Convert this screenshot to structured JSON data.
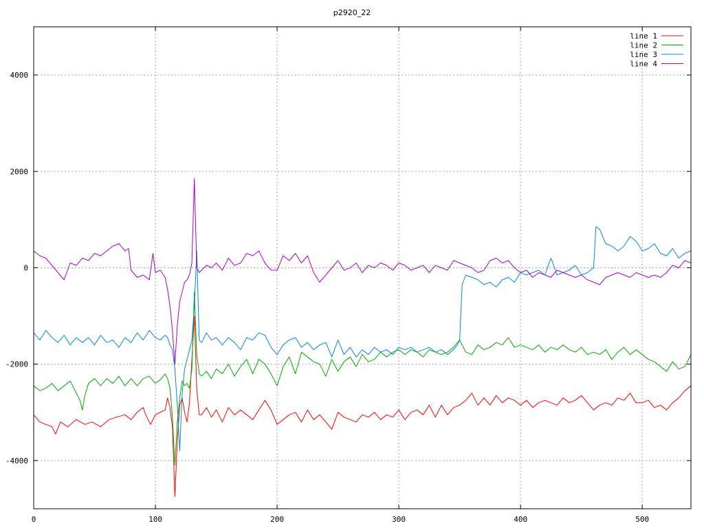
{
  "chart_data": {
    "type": "line",
    "title": "p2920_22",
    "xlabel": "",
    "ylabel": "",
    "xlim": [
      0,
      540
    ],
    "ylim": [
      -5000,
      5000
    ],
    "xticks": [
      0,
      100,
      200,
      300,
      400,
      500
    ],
    "yticks": [
      -4000,
      -2000,
      0,
      2000,
      4000
    ],
    "ytick_labels": [
      "-4000",
      "-2000",
      "0",
      "2000",
      "4000"
    ],
    "grid": true,
    "legend_position": "top-right",
    "series": [
      {
        "name": "line 1",
        "color": "#ff0000",
        "x": [
          0,
          5,
          10,
          15,
          18,
          22,
          28,
          35,
          42,
          48,
          55,
          62,
          68,
          75,
          80,
          85,
          90,
          92,
          96,
          100,
          104,
          108,
          110,
          112,
          114,
          116,
          118,
          120,
          122,
          124,
          126,
          128,
          130,
          132,
          134,
          136,
          138,
          142,
          146,
          150,
          155,
          160,
          165,
          170,
          175,
          180,
          185,
          190,
          195,
          200,
          205,
          210,
          215,
          220,
          225,
          230,
          235,
          240,
          245,
          250,
          255,
          260,
          265,
          270,
          275,
          280,
          285,
          290,
          295,
          300,
          305,
          310,
          315,
          320,
          325,
          330,
          335,
          340,
          345,
          350,
          355,
          360,
          365,
          370,
          375,
          380,
          385,
          390,
          395,
          400,
          405,
          410,
          415,
          420,
          425,
          430,
          435,
          440,
          445,
          450,
          455,
          460,
          465,
          470,
          475,
          480,
          485,
          490,
          495,
          500,
          505,
          510,
          515,
          520,
          525,
          530,
          535,
          540
        ],
        "y": [
          -3050,
          -3200,
          -3250,
          -3300,
          -3450,
          -3200,
          -3300,
          -3150,
          -3250,
          -3200,
          -3300,
          -3150,
          -3100,
          -3050,
          -3150,
          -3000,
          -2900,
          -3050,
          -3250,
          -3050,
          -3000,
          -2950,
          -2700,
          -2900,
          -3300,
          -4750,
          -3600,
          -2850,
          -2700,
          -3000,
          -3200,
          -2800,
          -1900,
          -1000,
          -2500,
          -3050,
          -3050,
          -2900,
          -3100,
          -2950,
          -3200,
          -2900,
          -3050,
          -2950,
          -3050,
          -3150,
          -2950,
          -2750,
          -2950,
          -3250,
          -3150,
          -3050,
          -3000,
          -3200,
          -2950,
          -3150,
          -3050,
          -3200,
          -3350,
          -3000,
          -3100,
          -3150,
          -3200,
          -3050,
          -3100,
          -3000,
          -3150,
          -3050,
          -3100,
          -2950,
          -3150,
          -3000,
          -2950,
          -3050,
          -2850,
          -3100,
          -2850,
          -3050,
          -2900,
          -2850,
          -2750,
          -2600,
          -2850,
          -2700,
          -2850,
          -2650,
          -2800,
          -2700,
          -2750,
          -2850,
          -2750,
          -2900,
          -2800,
          -2750,
          -2800,
          -2850,
          -2700,
          -2800,
          -2750,
          -2650,
          -2800,
          -2950,
          -2850,
          -2800,
          -2850,
          -2700,
          -2750,
          -2600,
          -2800,
          -2800,
          -2750,
          -2900,
          -2850,
          -2950,
          -2800,
          -2700,
          -2550,
          -2450
        ]
      },
      {
        "name": "line 2",
        "color": "#00aa00",
        "x": [
          0,
          5,
          10,
          15,
          20,
          25,
          30,
          35,
          38,
          40,
          42,
          45,
          50,
          55,
          60,
          65,
          70,
          75,
          80,
          85,
          90,
          95,
          100,
          105,
          108,
          110,
          112,
          114,
          116,
          118,
          120,
          122,
          124,
          126,
          128,
          130,
          132,
          134,
          136,
          138,
          142,
          146,
          150,
          155,
          160,
          165,
          170,
          175,
          180,
          185,
          190,
          195,
          200,
          205,
          210,
          215,
          220,
          225,
          230,
          235,
          240,
          245,
          250,
          255,
          260,
          265,
          270,
          275,
          280,
          285,
          290,
          295,
          300,
          305,
          310,
          315,
          320,
          325,
          330,
          335,
          340,
          345,
          350,
          355,
          360,
          365,
          370,
          375,
          380,
          385,
          390,
          395,
          400,
          405,
          410,
          415,
          420,
          425,
          430,
          435,
          440,
          445,
          450,
          455,
          460,
          465,
          470,
          475,
          480,
          485,
          490,
          495,
          500,
          505,
          510,
          515,
          520,
          525,
          530,
          535,
          540
        ],
        "y": [
          -2450,
          -2550,
          -2500,
          -2400,
          -2550,
          -2450,
          -2350,
          -2600,
          -2750,
          -2950,
          -2650,
          -2400,
          -2300,
          -2450,
          -2300,
          -2400,
          -2250,
          -2450,
          -2300,
          -2450,
          -2300,
          -2250,
          -2400,
          -2300,
          -2200,
          -2300,
          -2500,
          -3100,
          -4100,
          -3200,
          -2700,
          -2350,
          -2450,
          -2400,
          -2500,
          -2100,
          -500,
          -1800,
          -2200,
          -2250,
          -2150,
          -2300,
          -2100,
          -2200,
          -2000,
          -2250,
          -2050,
          -1900,
          -2200,
          -1900,
          -2000,
          -2200,
          -2450,
          -2050,
          -1850,
          -2200,
          -1750,
          -1850,
          -1950,
          -2000,
          -2250,
          -1900,
          -2150,
          -1950,
          -1850,
          -2050,
          -1800,
          -1950,
          -1900,
          -1750,
          -1850,
          -1750,
          -1700,
          -1800,
          -1700,
          -1750,
          -1850,
          -1700,
          -1750,
          -1800,
          -1750,
          -1650,
          -1500,
          -1750,
          -1800,
          -1600,
          -1700,
          -1650,
          -1550,
          -1600,
          -1450,
          -1650,
          -1600,
          -1650,
          -1700,
          -1600,
          -1750,
          -1650,
          -1700,
          -1600,
          -1700,
          -1750,
          -1650,
          -1800,
          -1750,
          -1800,
          -1700,
          -1900,
          -1750,
          -1650,
          -1800,
          -1700,
          -1800,
          -1900,
          -1950,
          -2050,
          -2150,
          -1950,
          -2100,
          -2050,
          -1800
        ]
      },
      {
        "name": "line 3",
        "color": "#0088dd",
        "x": [
          0,
          5,
          10,
          15,
          20,
          25,
          30,
          35,
          40,
          45,
          50,
          55,
          60,
          65,
          70,
          75,
          80,
          85,
          90,
          95,
          100,
          104,
          108,
          110,
          112,
          114,
          116,
          118,
          120,
          122,
          124,
          126,
          128,
          130,
          132,
          134,
          136,
          138,
          142,
          146,
          150,
          155,
          160,
          165,
          170,
          175,
          180,
          185,
          190,
          195,
          200,
          205,
          210,
          215,
          220,
          225,
          230,
          235,
          240,
          245,
          250,
          255,
          260,
          265,
          270,
          275,
          280,
          285,
          290,
          295,
          300,
          305,
          310,
          315,
          320,
          325,
          330,
          335,
          340,
          345,
          348,
          350,
          352,
          355,
          360,
          365,
          370,
          375,
          380,
          385,
          390,
          395,
          400,
          405,
          410,
          415,
          420,
          425,
          428,
          430,
          435,
          440,
          445,
          450,
          455,
          460,
          462,
          465,
          470,
          475,
          480,
          485,
          490,
          495,
          500,
          505,
          510,
          515,
          520,
          525,
          530,
          535,
          540
        ],
        "y": [
          -1350,
          -1500,
          -1300,
          -1450,
          -1550,
          -1400,
          -1600,
          -1450,
          -1550,
          -1450,
          -1600,
          -1400,
          -1550,
          -1500,
          -1650,
          -1450,
          -1550,
          -1350,
          -1500,
          -1300,
          -1450,
          -1500,
          -1400,
          -1450,
          -1600,
          -1700,
          -2100,
          -2850,
          -3800,
          -2600,
          -2100,
          -1900,
          -1700,
          -1500,
          -800,
          350,
          -1500,
          -1550,
          -1350,
          -1500,
          -1450,
          -1600,
          -1450,
          -1550,
          -1700,
          -1450,
          -1500,
          -1350,
          -1400,
          -1650,
          -1800,
          -1600,
          -1500,
          -1450,
          -1650,
          -1550,
          -1700,
          -1600,
          -1550,
          -1850,
          -1500,
          -1800,
          -1650,
          -1850,
          -1700,
          -1800,
          -1650,
          -1750,
          -1700,
          -1800,
          -1650,
          -1700,
          -1650,
          -1750,
          -1700,
          -1650,
          -1750,
          -1700,
          -1800,
          -1700,
          -1600,
          -1500,
          -350,
          -150,
          -200,
          -250,
          -350,
          -300,
          -400,
          -250,
          -200,
          -300,
          -100,
          -150,
          -100,
          -50,
          -150,
          200,
          0,
          -150,
          -100,
          -50,
          50,
          -150,
          -100,
          0,
          850,
          800,
          500,
          450,
          350,
          450,
          650,
          550,
          350,
          400,
          500,
          300,
          250,
          400,
          200,
          300,
          350
        ]
      },
      {
        "name": "line 4",
        "color": "#aa00cc",
        "x": [
          0,
          5,
          10,
          15,
          20,
          25,
          30,
          35,
          40,
          45,
          50,
          55,
          60,
          65,
          70,
          75,
          78,
          80,
          85,
          90,
          95,
          98,
          100,
          104,
          108,
          110,
          112,
          114,
          116,
          118,
          120,
          122,
          124,
          126,
          128,
          130,
          132,
          134,
          136,
          138,
          142,
          146,
          150,
          155,
          160,
          165,
          170,
          175,
          180,
          185,
          190,
          195,
          200,
          205,
          210,
          215,
          220,
          225,
          230,
          235,
          240,
          245,
          250,
          255,
          260,
          265,
          270,
          275,
          280,
          285,
          290,
          295,
          300,
          305,
          310,
          315,
          320,
          325,
          330,
          335,
          340,
          345,
          350,
          355,
          360,
          365,
          370,
          375,
          380,
          385,
          390,
          395,
          400,
          405,
          410,
          415,
          420,
          425,
          430,
          435,
          440,
          445,
          450,
          455,
          460,
          465,
          470,
          475,
          480,
          485,
          490,
          495,
          500,
          505,
          510,
          515,
          520,
          525,
          530,
          535,
          540
        ],
        "y": [
          350,
          250,
          200,
          50,
          -100,
          -250,
          100,
          50,
          200,
          150,
          300,
          250,
          350,
          450,
          500,
          350,
          400,
          -50,
          -200,
          -150,
          -250,
          300,
          -100,
          -50,
          -200,
          -450,
          -800,
          -1300,
          -2000,
          -1200,
          -700,
          -500,
          -300,
          -250,
          -150,
          100,
          1850,
          0,
          -100,
          -50,
          50,
          0,
          100,
          -50,
          200,
          50,
          100,
          300,
          250,
          350,
          100,
          -50,
          -50,
          250,
          150,
          300,
          100,
          250,
          -100,
          -300,
          -150,
          0,
          150,
          -50,
          0,
          100,
          -100,
          50,
          0,
          100,
          50,
          -50,
          100,
          50,
          -50,
          0,
          50,
          -100,
          50,
          0,
          -50,
          150,
          100,
          50,
          0,
          -100,
          -50,
          150,
          200,
          100,
          150,
          0,
          -100,
          -50,
          -200,
          -100,
          -150,
          -200,
          -50,
          -100,
          -150,
          -200,
          -150,
          -250,
          -300,
          -350,
          -200,
          -150,
          -100,
          -150,
          -200,
          -100,
          -150,
          -200,
          -150,
          -200,
          -100,
          50,
          0,
          150,
          100
        ]
      }
    ]
  }
}
